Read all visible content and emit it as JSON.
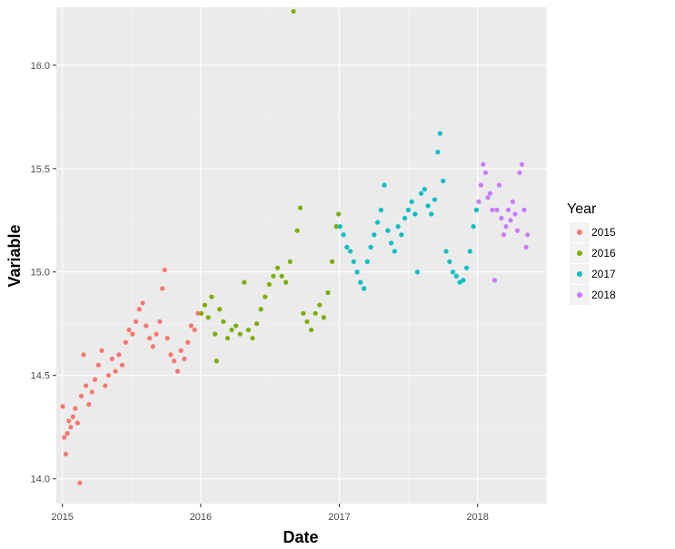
{
  "chart_data": {
    "type": "scatter",
    "title": "",
    "xlabel": "Date",
    "ylabel": "Variable",
    "xlim": [
      "2014-12-16",
      "2018-07-03"
    ],
    "ylim": [
      13.88,
      16.28
    ],
    "x_ticks": [
      {
        "date": "2015-01-01",
        "label": "2015"
      },
      {
        "date": "2016-01-01",
        "label": "2016"
      },
      {
        "date": "2017-01-01",
        "label": "2017"
      },
      {
        "date": "2018-01-01",
        "label": "2018"
      }
    ],
    "y_ticks": [
      14.0,
      14.5,
      15.0,
      15.5,
      16.0
    ],
    "y_tick_labels": [
      "14.0",
      "14.5",
      "15.0",
      "15.5",
      "16.0"
    ],
    "grid": true,
    "legend": {
      "title": "Year",
      "position": "right"
    },
    "series": [
      {
        "name": "2015",
        "color": "#F8766D",
        "points": [
          [
            "2015-01-02",
            14.35
          ],
          [
            "2015-01-06",
            14.2
          ],
          [
            "2015-01-10",
            14.12
          ],
          [
            "2015-01-14",
            14.22
          ],
          [
            "2015-01-18",
            14.28
          ],
          [
            "2015-01-23",
            14.25
          ],
          [
            "2015-01-29",
            14.3
          ],
          [
            "2015-02-04",
            14.34
          ],
          [
            "2015-02-10",
            14.27
          ],
          [
            "2015-02-16",
            13.98
          ],
          [
            "2015-02-20",
            14.4
          ],
          [
            "2015-02-26",
            14.6
          ],
          [
            "2015-03-04",
            14.45
          ],
          [
            "2015-03-12",
            14.36
          ],
          [
            "2015-03-20",
            14.42
          ],
          [
            "2015-03-28",
            14.48
          ],
          [
            "2015-04-06",
            14.55
          ],
          [
            "2015-04-15",
            14.62
          ],
          [
            "2015-04-24",
            14.45
          ],
          [
            "2015-05-03",
            14.5
          ],
          [
            "2015-05-12",
            14.58
          ],
          [
            "2015-05-21",
            14.52
          ],
          [
            "2015-05-30",
            14.6
          ],
          [
            "2015-06-08",
            14.55
          ],
          [
            "2015-06-17",
            14.66
          ],
          [
            "2015-06-26",
            14.72
          ],
          [
            "2015-07-05",
            14.7
          ],
          [
            "2015-07-14",
            14.76
          ],
          [
            "2015-07-23",
            14.82
          ],
          [
            "2015-08-01",
            14.85
          ],
          [
            "2015-08-10",
            14.74
          ],
          [
            "2015-08-19",
            14.68
          ],
          [
            "2015-08-28",
            14.64
          ],
          [
            "2015-09-06",
            14.7
          ],
          [
            "2015-09-15",
            14.76
          ],
          [
            "2015-09-22",
            14.92
          ],
          [
            "2015-09-28",
            15.01
          ],
          [
            "2015-10-05",
            14.68
          ],
          [
            "2015-10-14",
            14.6
          ],
          [
            "2015-10-23",
            14.57
          ],
          [
            "2015-11-01",
            14.52
          ],
          [
            "2015-11-10",
            14.62
          ],
          [
            "2015-11-19",
            14.58
          ],
          [
            "2015-11-28",
            14.66
          ],
          [
            "2015-12-07",
            14.74
          ],
          [
            "2015-12-16",
            14.72
          ],
          [
            "2015-12-25",
            14.8
          ]
        ]
      },
      {
        "name": "2016",
        "color": "#7CAE00",
        "points": [
          [
            "2016-01-03",
            14.8
          ],
          [
            "2016-01-12",
            14.84
          ],
          [
            "2016-01-21",
            14.78
          ],
          [
            "2016-01-30",
            14.88
          ],
          [
            "2016-02-08",
            14.7
          ],
          [
            "2016-02-12",
            14.57
          ],
          [
            "2016-02-20",
            14.82
          ],
          [
            "2016-03-01",
            14.76
          ],
          [
            "2016-03-12",
            14.68
          ],
          [
            "2016-03-23",
            14.72
          ],
          [
            "2016-04-03",
            14.74
          ],
          [
            "2016-04-14",
            14.7
          ],
          [
            "2016-04-25",
            14.95
          ],
          [
            "2016-05-06",
            14.72
          ],
          [
            "2016-05-17",
            14.68
          ],
          [
            "2016-05-28",
            14.75
          ],
          [
            "2016-06-08",
            14.82
          ],
          [
            "2016-06-19",
            14.88
          ],
          [
            "2016-06-30",
            14.94
          ],
          [
            "2016-07-11",
            14.98
          ],
          [
            "2016-07-22",
            15.02
          ],
          [
            "2016-08-02",
            14.98
          ],
          [
            "2016-08-13",
            14.95
          ],
          [
            "2016-08-24",
            15.05
          ],
          [
            "2016-09-02",
            16.26
          ],
          [
            "2016-09-12",
            15.2
          ],
          [
            "2016-09-20",
            15.31
          ],
          [
            "2016-09-28",
            14.8
          ],
          [
            "2016-10-08",
            14.76
          ],
          [
            "2016-10-19",
            14.72
          ],
          [
            "2016-10-30",
            14.8
          ],
          [
            "2016-11-10",
            14.84
          ],
          [
            "2016-11-21",
            14.78
          ],
          [
            "2016-12-02",
            14.9
          ],
          [
            "2016-12-13",
            15.05
          ],
          [
            "2016-12-24",
            15.22
          ],
          [
            "2016-12-30",
            15.28
          ]
        ]
      },
      {
        "name": "2017",
        "color": "#00BFC4",
        "points": [
          [
            "2017-01-03",
            15.22
          ],
          [
            "2017-01-12",
            15.18
          ],
          [
            "2017-01-21",
            15.12
          ],
          [
            "2017-01-30",
            15.1
          ],
          [
            "2017-02-08",
            15.05
          ],
          [
            "2017-02-17",
            15.0
          ],
          [
            "2017-02-26",
            14.95
          ],
          [
            "2017-03-07",
            14.92
          ],
          [
            "2017-03-16",
            15.05
          ],
          [
            "2017-03-25",
            15.12
          ],
          [
            "2017-04-03",
            15.18
          ],
          [
            "2017-04-12",
            15.24
          ],
          [
            "2017-04-21",
            15.3
          ],
          [
            "2017-04-30",
            15.42
          ],
          [
            "2017-05-09",
            15.2
          ],
          [
            "2017-05-18",
            15.14
          ],
          [
            "2017-05-27",
            15.1
          ],
          [
            "2017-06-05",
            15.22
          ],
          [
            "2017-06-14",
            15.18
          ],
          [
            "2017-06-23",
            15.26
          ],
          [
            "2017-07-02",
            15.3
          ],
          [
            "2017-07-11",
            15.34
          ],
          [
            "2017-07-20",
            15.28
          ],
          [
            "2017-07-26",
            15.0
          ],
          [
            "2017-08-05",
            15.38
          ],
          [
            "2017-08-14",
            15.4
          ],
          [
            "2017-08-23",
            15.32
          ],
          [
            "2017-09-01",
            15.28
          ],
          [
            "2017-09-10",
            15.35
          ],
          [
            "2017-09-18",
            15.58
          ],
          [
            "2017-09-24",
            15.67
          ],
          [
            "2017-10-02",
            15.44
          ],
          [
            "2017-10-10",
            15.1
          ],
          [
            "2017-10-19",
            15.05
          ],
          [
            "2017-10-28",
            15.0
          ],
          [
            "2017-11-06",
            14.98
          ],
          [
            "2017-11-15",
            14.95
          ],
          [
            "2017-11-24",
            14.96
          ],
          [
            "2017-12-03",
            15.02
          ],
          [
            "2017-12-12",
            15.1
          ],
          [
            "2017-12-21",
            15.22
          ],
          [
            "2017-12-29",
            15.3
          ]
        ]
      },
      {
        "name": "2018",
        "color": "#C77CFF",
        "points": [
          [
            "2018-01-04",
            15.34
          ],
          [
            "2018-01-10",
            15.42
          ],
          [
            "2018-01-16",
            15.52
          ],
          [
            "2018-01-22",
            15.48
          ],
          [
            "2018-01-28",
            15.36
          ],
          [
            "2018-02-03",
            15.38
          ],
          [
            "2018-02-09",
            15.3
          ],
          [
            "2018-02-15",
            14.96
          ],
          [
            "2018-02-21",
            15.3
          ],
          [
            "2018-02-27",
            15.42
          ],
          [
            "2018-03-05",
            15.26
          ],
          [
            "2018-03-11",
            15.18
          ],
          [
            "2018-03-17",
            15.22
          ],
          [
            "2018-03-23",
            15.3
          ],
          [
            "2018-03-29",
            15.25
          ],
          [
            "2018-04-04",
            15.34
          ],
          [
            "2018-04-10",
            15.28
          ],
          [
            "2018-04-16",
            15.2
          ],
          [
            "2018-04-22",
            15.48
          ],
          [
            "2018-04-28",
            15.52
          ],
          [
            "2018-05-04",
            15.3
          ],
          [
            "2018-05-09",
            15.12
          ],
          [
            "2018-05-13",
            15.18
          ]
        ]
      }
    ]
  }
}
